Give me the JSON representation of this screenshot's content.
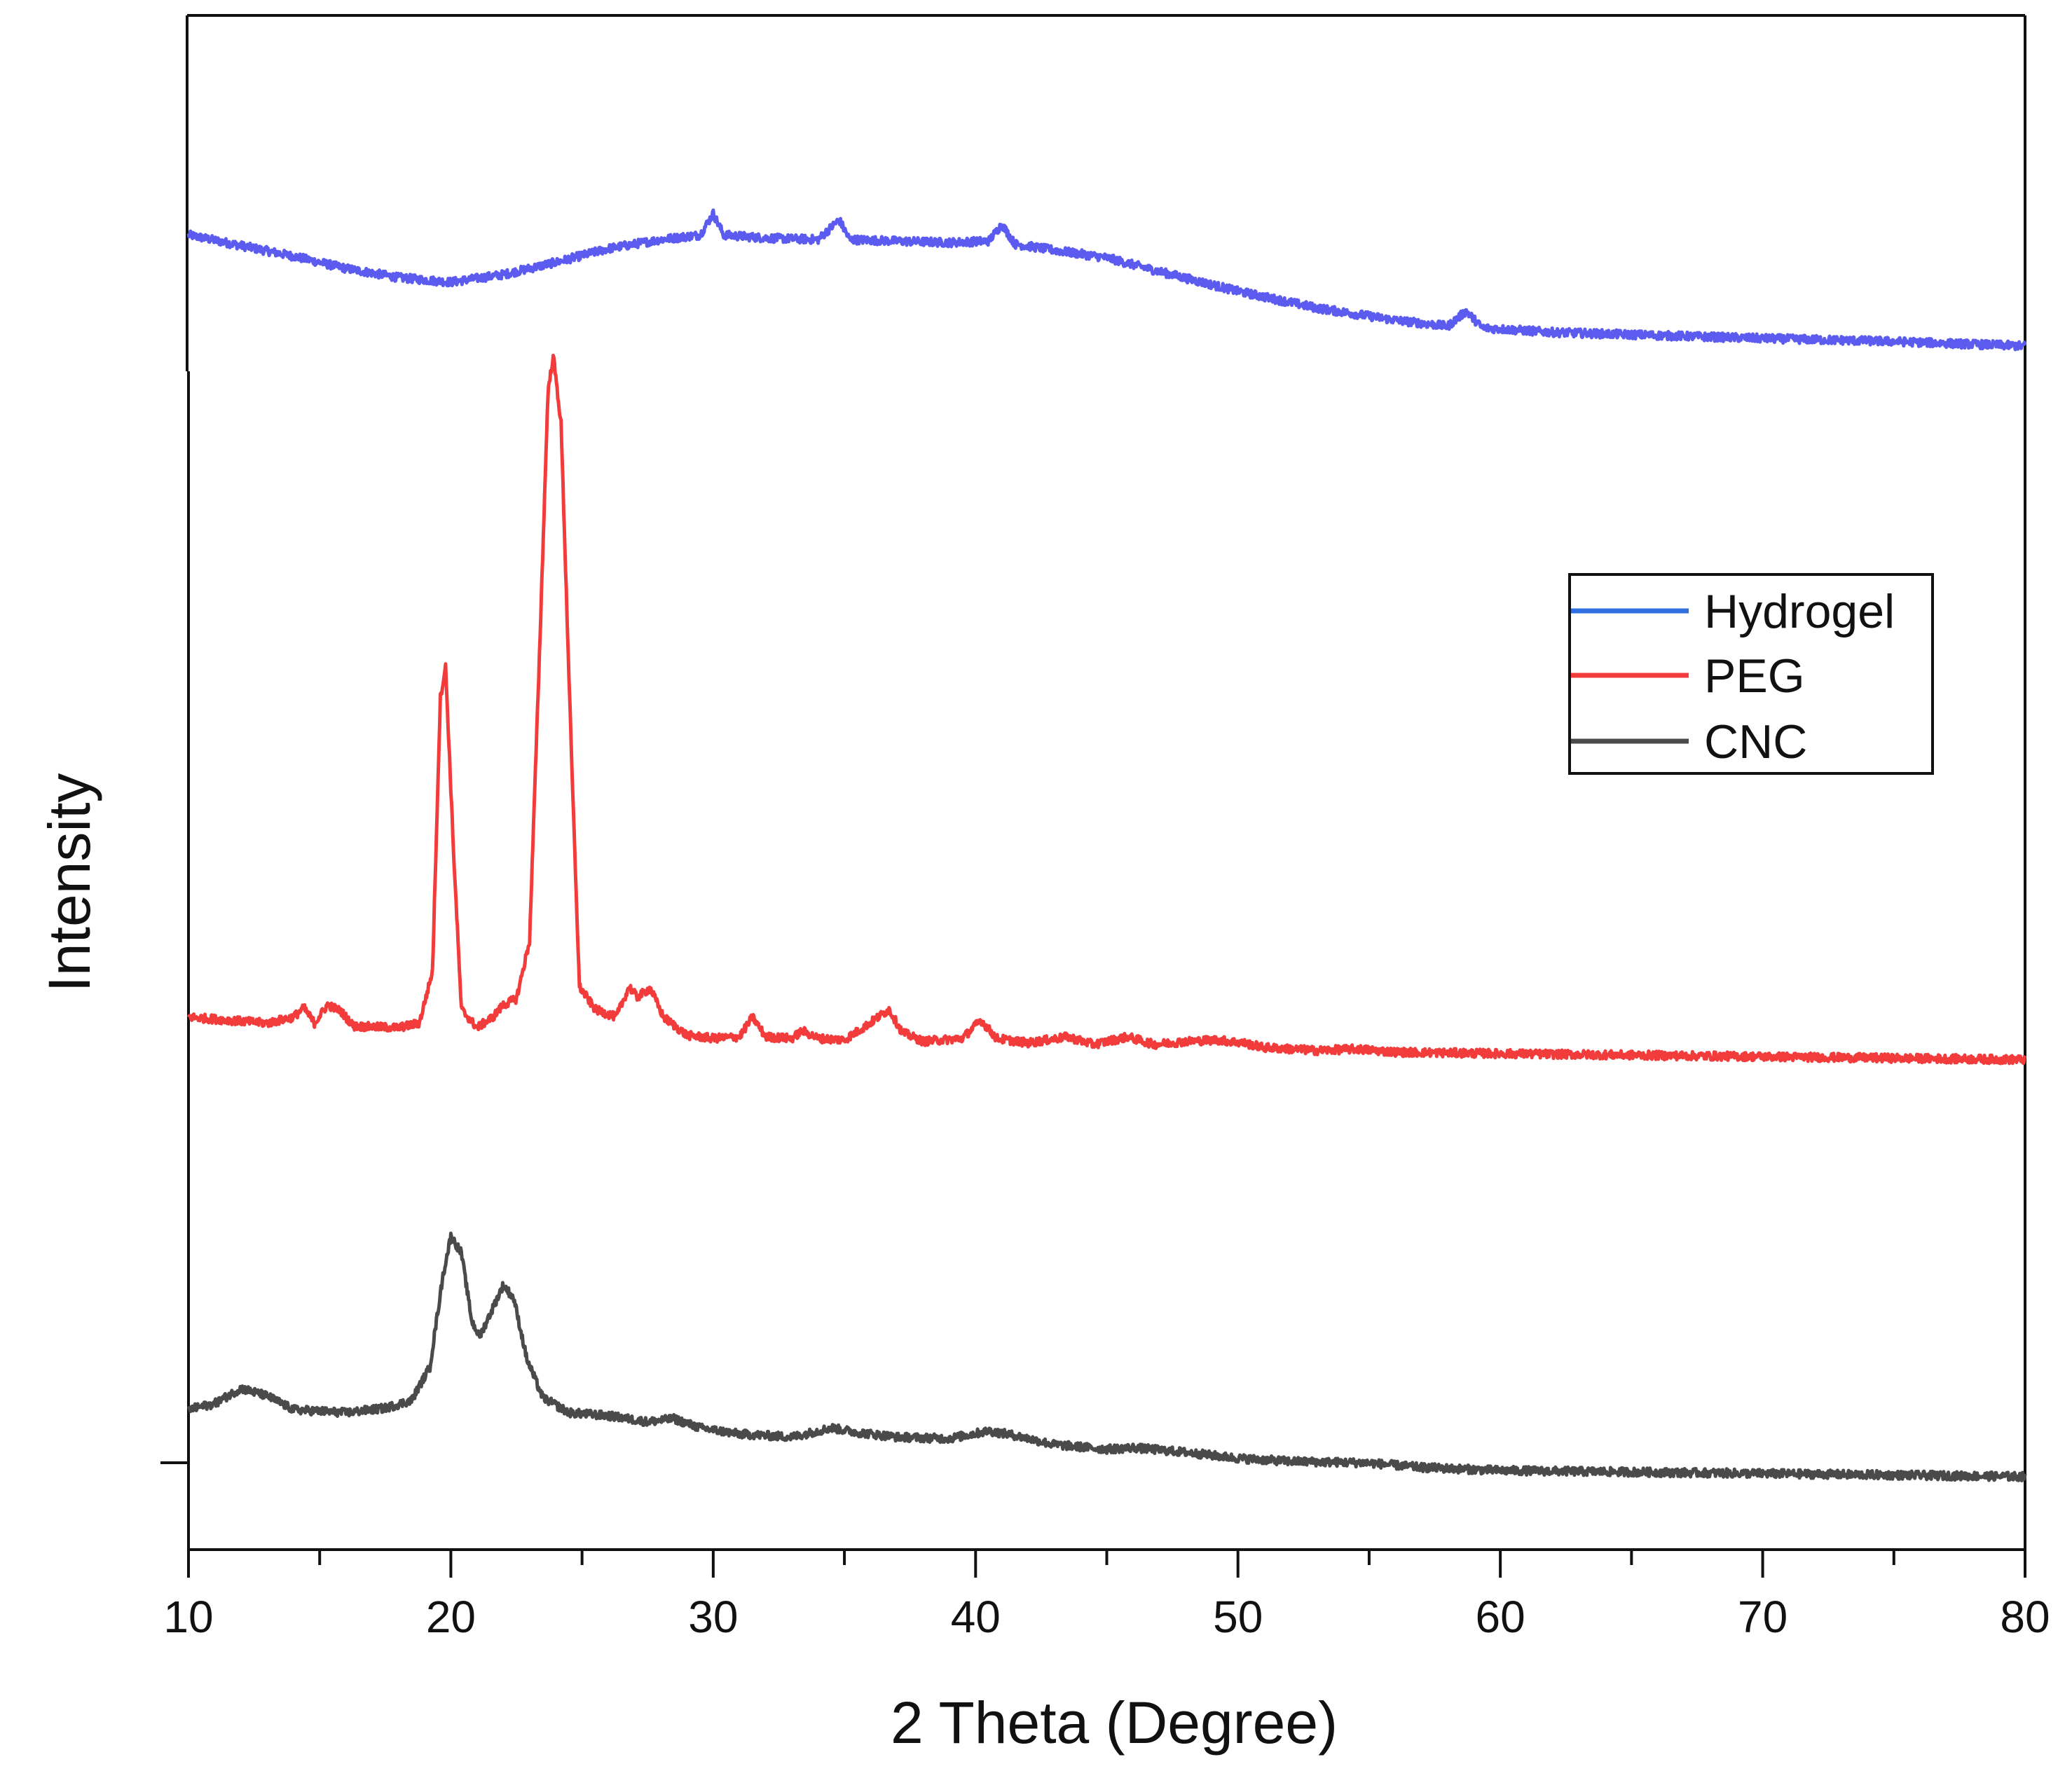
{
  "chart_data": {
    "type": "line",
    "title": "",
    "xlabel": "2 Theta (Degree)",
    "ylabel": "Intensity",
    "xlim": [
      10,
      80
    ],
    "ylim": [
      0,
      100
    ],
    "x_ticks": [
      10,
      20,
      30,
      40,
      50,
      60,
      70,
      80
    ],
    "x_tick_labels": [
      "10",
      "20",
      "30",
      "40",
      "50",
      "60",
      "70",
      "80"
    ],
    "legend": {
      "position": "center-right",
      "entries": [
        "Hydrogel",
        "PEG",
        "CNC"
      ]
    },
    "series": [
      {
        "name": "Hydrogel",
        "color": "#5b5bf0",
        "points": [
          [
            10,
            86.4
          ],
          [
            12,
            85.7
          ],
          [
            14,
            85.0
          ],
          [
            16,
            84.2
          ],
          [
            18,
            83.6
          ],
          [
            20,
            83.3
          ],
          [
            22,
            83.8
          ],
          [
            24,
            84.6
          ],
          [
            26,
            85.5
          ],
          [
            28,
            86.1
          ],
          [
            29.5,
            86.4
          ],
          [
            30,
            87.8
          ],
          [
            30.4,
            86.4
          ],
          [
            32,
            86.2
          ],
          [
            34,
            86.1
          ],
          [
            34.8,
            87.4
          ],
          [
            35.2,
            86.1
          ],
          [
            37,
            86.0
          ],
          [
            39,
            85.9
          ],
          [
            40.5,
            86.0
          ],
          [
            41,
            87.1
          ],
          [
            41.5,
            85.8
          ],
          [
            43,
            85.4
          ],
          [
            45,
            84.9
          ],
          [
            47,
            84.0
          ],
          [
            50,
            82.7
          ],
          [
            53,
            81.6
          ],
          [
            56,
            80.8
          ],
          [
            58,
            80.4
          ],
          [
            58.7,
            81.4
          ],
          [
            59.3,
            80.3
          ],
          [
            62,
            80.0
          ],
          [
            66,
            79.8
          ],
          [
            70,
            79.6
          ],
          [
            75,
            79.4
          ],
          [
            80,
            79.1
          ]
        ]
      },
      {
        "name": "PEG",
        "color": "#f23c3c",
        "points": [
          [
            10,
            35.0
          ],
          [
            13,
            34.6
          ],
          [
            14,
            35.0
          ],
          [
            14.4,
            35.6
          ],
          [
            14.8,
            34.6
          ],
          [
            15.3,
            35.8
          ],
          [
            15.8,
            35.4
          ],
          [
            16.3,
            34.4
          ],
          [
            18,
            34.3
          ],
          [
            18.8,
            34.6
          ],
          [
            19.3,
            38.0
          ],
          [
            19.6,
            56.0
          ],
          [
            19.8,
            58.0
          ],
          [
            20.1,
            46.0
          ],
          [
            20.4,
            35.5
          ],
          [
            21,
            34.3
          ],
          [
            21.6,
            35.0
          ],
          [
            22,
            35.8
          ],
          [
            22.5,
            36.2
          ],
          [
            23,
            40.0
          ],
          [
            23.4,
            60.0
          ],
          [
            23.7,
            76.0
          ],
          [
            23.9,
            78.5
          ],
          [
            24.2,
            74.0
          ],
          [
            24.6,
            52.0
          ],
          [
            24.9,
            37.0
          ],
          [
            25.5,
            35.5
          ],
          [
            26.3,
            35.0
          ],
          [
            26.8,
            37.0
          ],
          [
            27.1,
            36.3
          ],
          [
            27.6,
            36.9
          ],
          [
            28.1,
            35.0
          ],
          [
            29,
            33.8
          ],
          [
            30,
            33.6
          ],
          [
            31,
            33.7
          ],
          [
            31.5,
            35.0
          ],
          [
            32,
            33.7
          ],
          [
            33,
            33.6
          ],
          [
            33.4,
            34.1
          ],
          [
            34,
            33.6
          ],
          [
            35,
            33.5
          ],
          [
            35.8,
            34.4
          ],
          [
            36.7,
            35.5
          ],
          [
            37.2,
            34.0
          ],
          [
            38,
            33.4
          ],
          [
            39.5,
            33.6
          ],
          [
            40.2,
            34.8
          ],
          [
            40.8,
            33.6
          ],
          [
            42,
            33.3
          ],
          [
            43.5,
            33.7
          ],
          [
            44.5,
            33.2
          ],
          [
            45.8,
            33.7
          ],
          [
            46.8,
            33.2
          ],
          [
            48,
            33.4
          ],
          [
            49.2,
            33.5
          ],
          [
            50.2,
            33.3
          ],
          [
            51,
            33.0
          ],
          [
            53,
            32.8
          ],
          [
            54.5,
            32.9
          ],
          [
            56,
            32.7
          ],
          [
            60,
            32.6
          ],
          [
            65,
            32.5
          ],
          [
            70,
            32.4
          ],
          [
            75,
            32.3
          ],
          [
            80,
            32.2
          ]
        ]
      },
      {
        "name": "CNC",
        "color": "#4a4a4a",
        "points": [
          [
            10,
            9.2
          ],
          [
            11,
            9.6
          ],
          [
            12,
            10.6
          ],
          [
            13,
            10.1
          ],
          [
            14,
            9.2
          ],
          [
            16,
            9.0
          ],
          [
            17.5,
            9.3
          ],
          [
            18.5,
            9.8
          ],
          [
            19.2,
            12.0
          ],
          [
            19.7,
            18.0
          ],
          [
            20,
            20.6
          ],
          [
            20.4,
            19.5
          ],
          [
            20.8,
            15.0
          ],
          [
            21.1,
            14.0
          ],
          [
            21.5,
            15.5
          ],
          [
            22,
            17.4
          ],
          [
            22.4,
            16.5
          ],
          [
            22.9,
            12.5
          ],
          [
            23.5,
            10.0
          ],
          [
            24.5,
            9.0
          ],
          [
            26,
            8.8
          ],
          [
            27.5,
            8.4
          ],
          [
            28.5,
            8.6
          ],
          [
            29.5,
            8.0
          ],
          [
            31,
            7.6
          ],
          [
            33,
            7.4
          ],
          [
            34.5,
            8.0
          ],
          [
            35.5,
            7.7
          ],
          [
            37,
            7.4
          ],
          [
            39,
            7.3
          ],
          [
            40.5,
            7.8
          ],
          [
            41.5,
            7.5
          ],
          [
            43,
            6.9
          ],
          [
            45,
            6.6
          ],
          [
            46,
            6.7
          ],
          [
            48,
            6.4
          ],
          [
            50,
            6.0
          ],
          [
            52,
            5.8
          ],
          [
            55,
            5.7
          ],
          [
            57,
            5.4
          ],
          [
            60,
            5.2
          ],
          [
            65,
            5.1
          ],
          [
            70,
            5.0
          ],
          [
            75,
            4.9
          ],
          [
            80,
            4.8
          ]
        ]
      }
    ]
  }
}
